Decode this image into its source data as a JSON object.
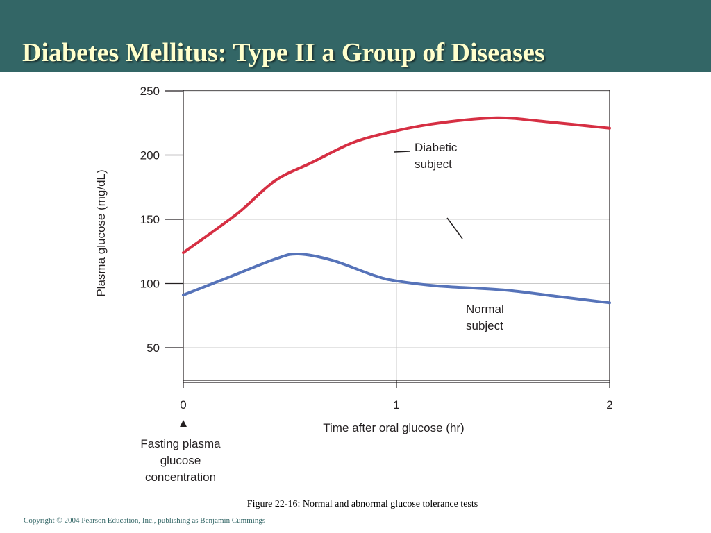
{
  "slide": {
    "title": "Diabetes Mellitus: Type II a Group of Diseases",
    "caption": "Figure 22-16: Normal and abnormal glucose tolerance tests",
    "copyright": "Copyright © 2004 Pearson Education, Inc., publishing as Benjamin Cummings"
  },
  "colors": {
    "title_bar": "#336666",
    "title_text": "#ffffcc",
    "diabetic": "#d62f43",
    "normal": "#5673b9",
    "grid": "#c9c9c9",
    "axis": "#231f20"
  },
  "chart_data": {
    "type": "line",
    "title": "",
    "xlabel": "Time after oral glucose (hr)",
    "ylabel": "Plasma glucose (mg/dL)",
    "xlim": [
      0,
      2
    ],
    "ylim": [
      50,
      250
    ],
    "x_ticks": [
      "0",
      "1",
      "2"
    ],
    "y_ticks": [
      "250",
      "200",
      "150",
      "100",
      "50"
    ],
    "grid": true,
    "series": [
      {
        "name": "Diabetic subject",
        "label_lines": [
          "Diabetic",
          "subject"
        ],
        "color": "#d62f43",
        "x": [
          0,
          0.25,
          0.43,
          0.6,
          0.8,
          1.0,
          1.2,
          1.47,
          1.7,
          2.0
        ],
        "y": [
          124,
          154,
          180,
          194,
          210,
          219,
          225,
          229,
          226,
          221
        ]
      },
      {
        "name": "Normal subject",
        "label_lines": [
          "Normal",
          "subject"
        ],
        "color": "#5673b9",
        "x": [
          0,
          0.2,
          0.43,
          0.54,
          0.7,
          0.9,
          1.0,
          1.2,
          1.5,
          1.75,
          2.0
        ],
        "y": [
          91,
          104,
          119,
          123,
          118,
          106,
          102,
          98,
          95,
          90,
          85
        ]
      }
    ],
    "annotation": {
      "marker": "▲",
      "lines": [
        "Fasting plasma",
        "glucose",
        "concentration"
      ]
    }
  }
}
